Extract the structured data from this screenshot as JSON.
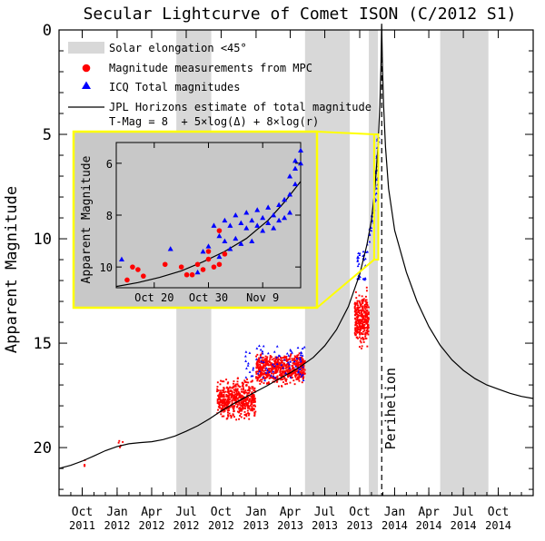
{
  "chart_data": {
    "type": "scatter",
    "title": "Secular Lightcurve of Comet ISON (C/2012 S1)",
    "xlabel": "",
    "ylabel": "Apparent Magnitude",
    "y_inverted": true,
    "ylim": [
      22.3,
      0
    ],
    "x_range": [
      "2011-08-01",
      "2015-01-01"
    ],
    "y_ticks": [
      0,
      5,
      10,
      15,
      20
    ],
    "x_ticks": [
      {
        "month": "Oct",
        "year": "2011",
        "date": "2011-10-01"
      },
      {
        "month": "Jan",
        "year": "2012",
        "date": "2012-01-01"
      },
      {
        "month": "Apr",
        "year": "2012",
        "date": "2012-04-01"
      },
      {
        "month": "Jul",
        "year": "2012",
        "date": "2012-07-01"
      },
      {
        "month": "Oct",
        "year": "2012",
        "date": "2012-10-01"
      },
      {
        "month": "Jan",
        "year": "2013",
        "date": "2013-01-01"
      },
      {
        "month": "Apr",
        "year": "2013",
        "date": "2013-04-01"
      },
      {
        "month": "Jul",
        "year": "2013",
        "date": "2013-07-01"
      },
      {
        "month": "Oct",
        "year": "2013",
        "date": "2013-10-01"
      },
      {
        "month": "Jan",
        "year": "2014",
        "date": "2014-01-01"
      },
      {
        "month": "Apr",
        "year": "2014",
        "date": "2014-04-01"
      },
      {
        "month": "Jul",
        "year": "2014",
        "date": "2014-07-01"
      },
      {
        "month": "Oct",
        "year": "2014",
        "date": "2014-10-01"
      }
    ],
    "grid": false,
    "legend_placement": "top-left",
    "legend": [
      {
        "label": "Solar elongation <45°",
        "kind": "band",
        "color": "#d8d8d8"
      },
      {
        "label": "Magnitude measurements from MPC",
        "kind": "dot",
        "color": "#ff0000"
      },
      {
        "label": "ICQ Total magnitudes",
        "kind": "triangle",
        "color": "#0000ff"
      },
      {
        "label": "JPL Horizons estimate of total magnitude",
        "kind": "line",
        "color": "#000000"
      }
    ],
    "formula": "T-Mag = 8  + 5×log(Δ) + 8×log(r)",
    "annotation": "Perihelion",
    "perihelion_date": "2013-11-28",
    "elongation_bands": [
      [
        "2012-06-05",
        "2012-09-05"
      ],
      [
        "2013-05-10",
        "2013-09-05"
      ],
      [
        "2013-10-25",
        "2013-11-18"
      ],
      [
        "2014-05-01",
        "2014-09-05"
      ]
    ],
    "jpl_curve": [
      [
        "2011-08-01",
        21.0
      ],
      [
        "2011-09-01",
        20.85
      ],
      [
        "2011-10-01",
        20.65
      ],
      [
        "2011-11-01",
        20.4
      ],
      [
        "2011-12-01",
        20.15
      ],
      [
        "2012-01-01",
        19.95
      ],
      [
        "2012-02-01",
        19.82
      ],
      [
        "2012-03-01",
        19.76
      ],
      [
        "2012-04-01",
        19.72
      ],
      [
        "2012-05-01",
        19.62
      ],
      [
        "2012-06-01",
        19.45
      ],
      [
        "2012-07-01",
        19.22
      ],
      [
        "2012-08-01",
        18.95
      ],
      [
        "2012-09-01",
        18.62
      ],
      [
        "2012-10-01",
        18.25
      ],
      [
        "2012-11-01",
        17.92
      ],
      [
        "2012-12-01",
        17.62
      ],
      [
        "2013-01-01",
        17.32
      ],
      [
        "2013-02-01",
        17.02
      ],
      [
        "2013-03-01",
        16.72
      ],
      [
        "2013-04-01",
        16.42
      ],
      [
        "2013-05-01",
        16.08
      ],
      [
        "2013-06-01",
        15.68
      ],
      [
        "2013-07-01",
        15.12
      ],
      [
        "2013-08-01",
        14.35
      ],
      [
        "2013-09-01",
        13.25
      ],
      [
        "2013-10-01",
        11.7
      ],
      [
        "2013-10-20",
        10.3
      ],
      [
        "2013-11-01",
        9.1
      ],
      [
        "2013-11-10",
        7.6
      ],
      [
        "2013-11-18",
        5.6
      ],
      [
        "2013-11-23",
        3.6
      ],
      [
        "2013-11-26",
        1.8
      ],
      [
        "2013-11-28",
        -0.3
      ],
      [
        "2013-11-30",
        1.8
      ],
      [
        "2013-12-03",
        3.6
      ],
      [
        "2013-12-08",
        5.6
      ],
      [
        "2013-12-16",
        7.6
      ],
      [
        "2014-01-01",
        9.6
      ],
      [
        "2014-02-01",
        11.6
      ],
      [
        "2014-03-01",
        13.0
      ],
      [
        "2014-04-01",
        14.2
      ],
      [
        "2014-05-01",
        15.1
      ],
      [
        "2014-06-01",
        15.8
      ],
      [
        "2014-07-01",
        16.3
      ],
      [
        "2014-08-01",
        16.7
      ],
      [
        "2014-09-01",
        17.0
      ],
      [
        "2014-10-01",
        17.2
      ],
      [
        "2014-11-01",
        17.4
      ],
      [
        "2014-12-01",
        17.55
      ],
      [
        "2015-01-01",
        17.65
      ]
    ],
    "mpc_clusters": [
      {
        "from": "2011-10-01",
        "to": "2011-10-10",
        "mag_min": 20.3,
        "mag_max": 21.2,
        "count": 4
      },
      {
        "from": "2012-01-01",
        "to": "2012-02-05",
        "mag_min": 19.4,
        "mag_max": 20.1,
        "count": 5
      },
      {
        "from": "2012-09-20",
        "to": "2012-12-31",
        "mag_min": 16.5,
        "mag_max": 18.9,
        "count": 520
      },
      {
        "from": "2013-01-01",
        "to": "2013-05-10",
        "mag_min": 15.2,
        "mag_max": 17.2,
        "count": 620
      },
      {
        "from": "2013-09-18",
        "to": "2013-10-25",
        "mag_min": 12.1,
        "mag_max": 15.6,
        "count": 300
      }
    ],
    "icq_clusters": [
      {
        "from": "2012-12-01",
        "to": "2013-05-10",
        "mag_min": 15.1,
        "mag_max": 16.8,
        "count": 80
      },
      {
        "from": "2013-09-25",
        "to": "2013-10-20",
        "mag_min": 10.6,
        "mag_max": 12.0,
        "count": 30
      }
    ],
    "icq_trail": [
      [
        "2013-10-20",
        10.4
      ],
      [
        "2013-10-24",
        10.0
      ],
      [
        "2013-10-28",
        9.6
      ],
      [
        "2013-11-01",
        9.3
      ],
      [
        "2013-11-04",
        9.0
      ],
      [
        "2013-11-07",
        8.6
      ],
      [
        "2013-11-10",
        8.3
      ],
      [
        "2013-11-12",
        8.0
      ],
      [
        "2013-11-14",
        7.4
      ],
      [
        "2013-11-15",
        7.0
      ],
      [
        "2013-11-16",
        6.6
      ],
      [
        "2013-11-17",
        6.1
      ],
      [
        "2013-11-18",
        5.6
      ],
      [
        "2013-11-19",
        5.2
      ]
    ],
    "inset": {
      "ylabel": "Apparent Magnitude",
      "xlim": [
        "2013-10-13",
        "2013-11-16"
      ],
      "ylim": [
        10.8,
        5.2
      ],
      "y_ticks": [
        6,
        8,
        10
      ],
      "x_ticks": [
        {
          "label": "Oct 20",
          "date": "2013-10-20"
        },
        {
          "label": "Oct 30",
          "date": "2013-10-30"
        },
        {
          "label": "Nov 9",
          "date": "2013-11-09"
        }
      ],
      "zoom_window": {
        "from": "2013-11-08",
        "to": "2013-11-19",
        "mag_top": 5.0,
        "mag_bottom": 11.0
      },
      "frame_color": "#ffff00",
      "background": "#c8c8c8",
      "curve": [
        [
          "2013-10-13",
          10.75
        ],
        [
          "2013-10-17",
          10.6
        ],
        [
          "2013-10-21",
          10.4
        ],
        [
          "2013-10-25",
          10.15
        ],
        [
          "2013-10-29",
          9.8
        ],
        [
          "2013-11-02",
          9.4
        ],
        [
          "2013-11-06",
          8.9
        ],
        [
          "2013-11-10",
          8.2
        ],
        [
          "2013-11-13",
          7.5
        ],
        [
          "2013-11-16",
          6.7
        ]
      ],
      "mpc": [
        [
          "2013-10-15",
          10.5
        ],
        [
          "2013-10-16",
          10.0
        ],
        [
          "2013-10-17",
          10.1
        ],
        [
          "2013-10-18",
          10.35
        ],
        [
          "2013-10-22",
          9.9
        ],
        [
          "2013-10-25",
          10.0
        ],
        [
          "2013-10-26",
          10.3
        ],
        [
          "2013-10-27",
          10.3
        ],
        [
          "2013-10-28",
          9.9
        ],
        [
          "2013-10-29",
          10.1
        ],
        [
          "2013-10-30",
          9.4
        ],
        [
          "2013-10-30",
          9.7
        ],
        [
          "2013-10-31",
          10.0
        ],
        [
          "2013-11-01",
          9.9
        ],
        [
          "2013-11-01",
          8.6
        ],
        [
          "2013-11-02",
          9.5
        ]
      ],
      "icq": [
        [
          "2013-10-14",
          9.7
        ],
        [
          "2013-10-23",
          9.3
        ],
        [
          "2013-10-28",
          10.2
        ],
        [
          "2013-10-29",
          9.4
        ],
        [
          "2013-10-30",
          9.2
        ],
        [
          "2013-10-31",
          8.4
        ],
        [
          "2013-11-01",
          9.6
        ],
        [
          "2013-11-01",
          8.8
        ],
        [
          "2013-11-02",
          9.0
        ],
        [
          "2013-11-02",
          8.2
        ],
        [
          "2013-11-03",
          8.4
        ],
        [
          "2013-11-03",
          9.3
        ],
        [
          "2013-11-04",
          8.0
        ],
        [
          "2013-11-04",
          8.9
        ],
        [
          "2013-11-05",
          8.3
        ],
        [
          "2013-11-05",
          9.1
        ],
        [
          "2013-11-06",
          7.9
        ],
        [
          "2013-11-06",
          8.5
        ],
        [
          "2013-11-07",
          8.2
        ],
        [
          "2013-11-07",
          9.0
        ],
        [
          "2013-11-08",
          7.8
        ],
        [
          "2013-11-08",
          8.4
        ],
        [
          "2013-11-09",
          8.1
        ],
        [
          "2013-11-09",
          8.6
        ],
        [
          "2013-11-10",
          7.7
        ],
        [
          "2013-11-10",
          8.3
        ],
        [
          "2013-11-11",
          8.0
        ],
        [
          "2013-11-11",
          8.5
        ],
        [
          "2013-11-12",
          7.6
        ],
        [
          "2013-11-12",
          8.2
        ],
        [
          "2013-11-13",
          8.1
        ],
        [
          "2013-11-13",
          7.4
        ],
        [
          "2013-11-14",
          7.9
        ],
        [
          "2013-11-14",
          7.2
        ],
        [
          "2013-11-15",
          6.8
        ],
        [
          "2013-11-15",
          6.2
        ],
        [
          "2013-11-15",
          5.9
        ],
        [
          "2013-11-16",
          6.0
        ],
        [
          "2013-11-16",
          5.5
        ],
        [
          "2013-11-14",
          6.5
        ]
      ]
    }
  }
}
